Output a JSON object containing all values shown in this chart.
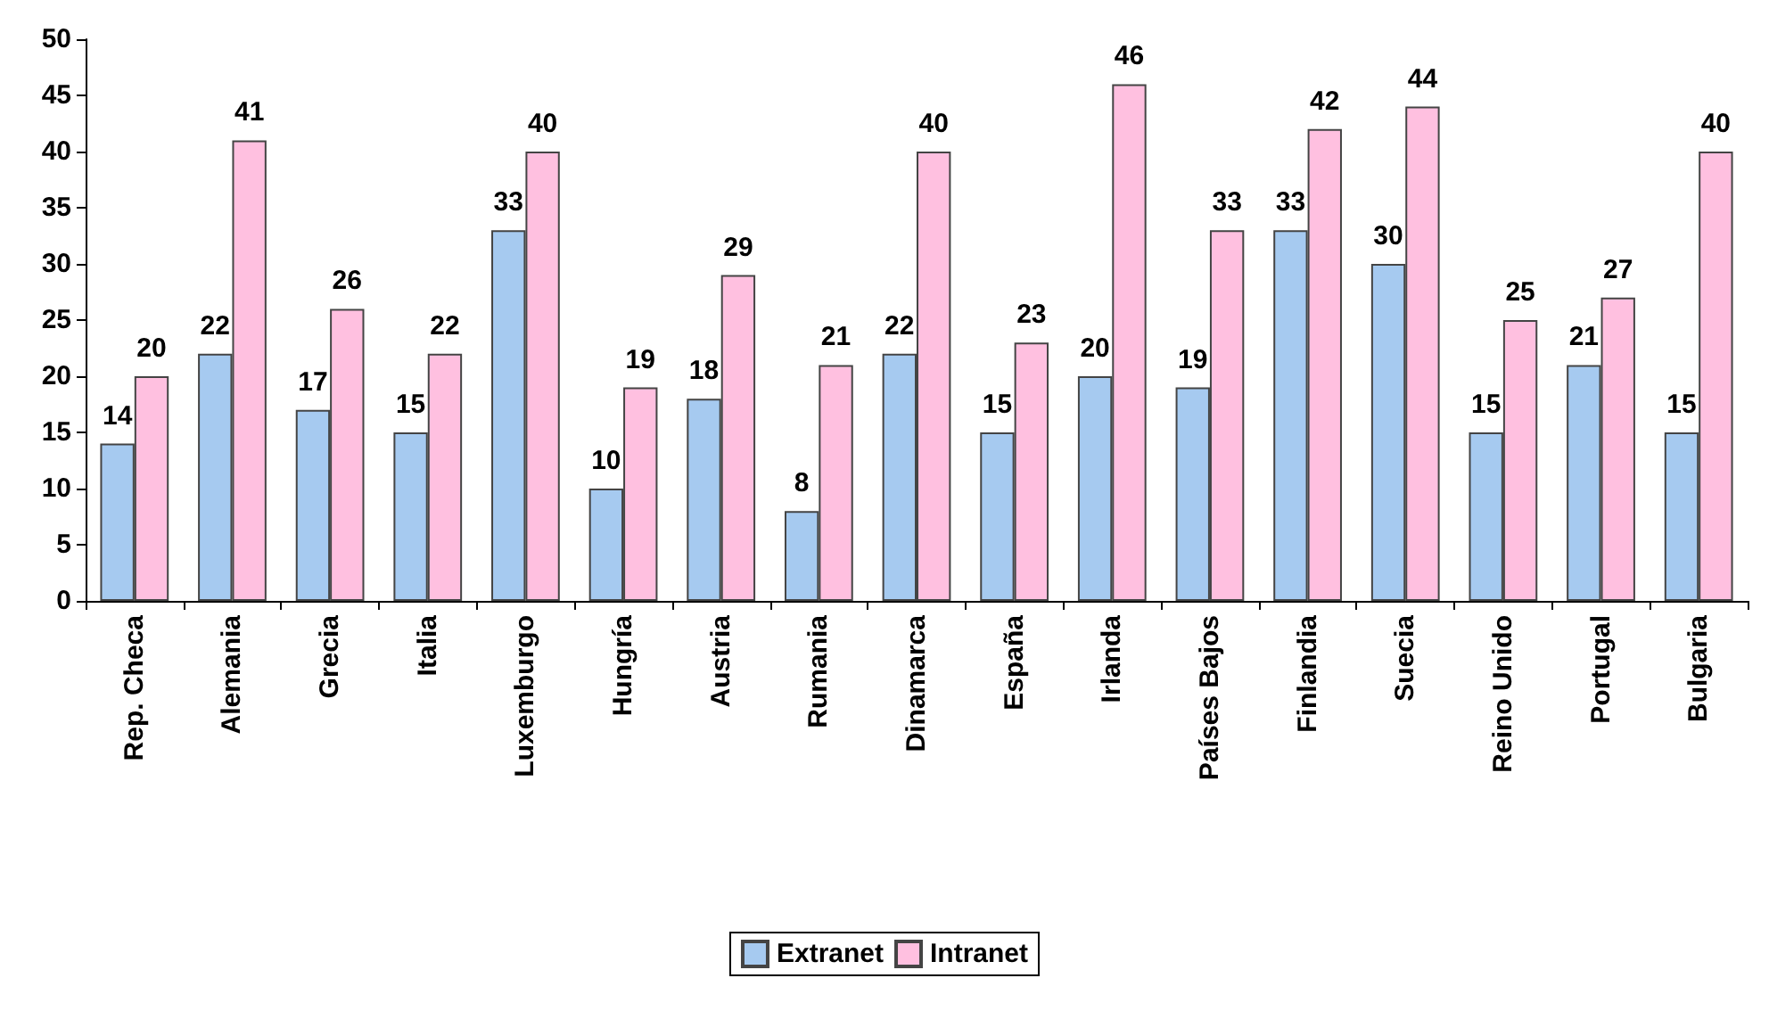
{
  "chart_data": {
    "type": "bar",
    "categories": [
      "Rep. Checa",
      "Alemania",
      "Grecia",
      "Italia",
      "Luxemburgo",
      "Hungría",
      "Austria",
      "Rumania",
      "Dinamarca",
      "España",
      "Irlanda",
      "Países Bajos",
      "Finlandia",
      "Suecia",
      "Reino Unido",
      "Portugal",
      "Bulgaria"
    ],
    "series": [
      {
        "name": "Extranet",
        "color": "#a6caf0",
        "values": [
          14,
          22,
          17,
          15,
          33,
          10,
          18,
          8,
          22,
          15,
          20,
          19,
          33,
          30,
          15,
          21,
          15
        ]
      },
      {
        "name": "Intranet",
        "color": "#ffc0e0",
        "values": [
          20,
          41,
          26,
          22,
          40,
          19,
          29,
          21,
          40,
          23,
          46,
          33,
          42,
          44,
          25,
          27,
          40
        ]
      }
    ],
    "ylim": [
      0,
      50
    ],
    "yticks": [
      0,
      5,
      10,
      15,
      20,
      25,
      30,
      35,
      40,
      45,
      50
    ],
    "grid": false,
    "legend": "bottom",
    "data_labels": true
  }
}
